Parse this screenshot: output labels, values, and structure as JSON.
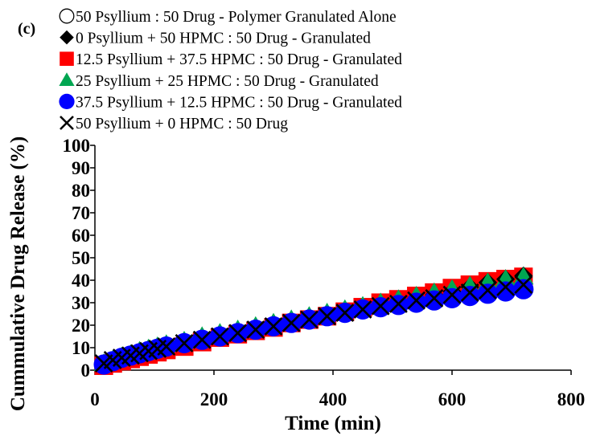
{
  "chart_data": {
    "type": "scatter",
    "panel_label": "(c)",
    "title": "",
    "xlabel": "Time (min)",
    "ylabel": "Cummulative Drug Release (%)",
    "xlim": [
      0,
      800
    ],
    "ylim": [
      0,
      100
    ],
    "x_ticks": [
      0,
      200,
      400,
      600,
      800
    ],
    "y_ticks": [
      0,
      10,
      20,
      30,
      40,
      50,
      60,
      70,
      80,
      90,
      100
    ],
    "grid": false,
    "legend_position": "top",
    "series": [
      {
        "name": "50 Psyllium : 50 Drug - Polymer Granulated Alone",
        "marker": "open-circle",
        "color": "#000000",
        "x": [],
        "y": []
      },
      {
        "name": "0 Psyllium + 50 HPMC : 50 Drug - Granulated",
        "marker": "diamond",
        "color": "#000000",
        "x": [
          15,
          30,
          45,
          60,
          75,
          90,
          105,
          120,
          150,
          180,
          210,
          240,
          270,
          300,
          330,
          360,
          390,
          420,
          450,
          480,
          510,
          540,
          570,
          600,
          630,
          660,
          690,
          720
        ],
        "y": [
          3,
          4.5,
          6,
          7,
          8,
          9,
          10,
          11,
          12.5,
          14,
          15.5,
          17,
          18.5,
          20,
          21.5,
          23,
          24.5,
          26,
          27.5,
          29,
          30.5,
          32,
          33.5,
          35,
          37,
          39,
          40.5,
          42
        ]
      },
      {
        "name": "12.5 Psyllium + 37.5 HPMC : 50 Drug - Granulated",
        "marker": "square",
        "color": "#ff0000",
        "x": [
          15,
          30,
          45,
          60,
          75,
          90,
          105,
          120,
          150,
          180,
          210,
          240,
          270,
          300,
          330,
          360,
          390,
          420,
          450,
          480,
          510,
          540,
          570,
          600,
          630,
          660,
          690,
          720
        ],
        "y": [
          2,
          3,
          4,
          5,
          6,
          7,
          8,
          9,
          10.5,
          12.5,
          14.5,
          16,
          17.5,
          19,
          21,
          22.5,
          24,
          26,
          28,
          30,
          31.5,
          33,
          34.5,
          36.5,
          38,
          39.5,
          40.5,
          41.5
        ]
      },
      {
        "name": "25 Psyllium + 25 HPMC : 50 Drug - Granulated",
        "marker": "triangle",
        "color": "#00a651",
        "x": [
          15,
          30,
          45,
          60,
          75,
          90,
          105,
          120,
          150,
          180,
          210,
          240,
          270,
          300,
          330,
          360,
          390,
          420,
          450,
          480,
          510,
          540,
          570,
          600,
          630,
          660,
          690,
          720
        ],
        "y": [
          3,
          4.5,
          6,
          7,
          8.5,
          9.5,
          10.5,
          11.5,
          13,
          15,
          16.5,
          18,
          19.5,
          21,
          22.5,
          24,
          25.5,
          27,
          28.5,
          30,
          31.5,
          33,
          34.5,
          36,
          37.5,
          39,
          40.5,
          41.5
        ]
      },
      {
        "name": "37.5 Psyllium + 12.5 HPMC : 50 Drug - Granulated",
        "marker": "circle",
        "color": "#0000ff",
        "x": [
          15,
          30,
          45,
          60,
          75,
          90,
          105,
          120,
          150,
          180,
          210,
          240,
          270,
          300,
          330,
          360,
          390,
          420,
          450,
          480,
          510,
          540,
          570,
          600,
          630,
          660,
          690,
          720
        ],
        "y": [
          2.5,
          4,
          5.5,
          6.5,
          7.5,
          8.5,
          9.5,
          10.5,
          12,
          13.5,
          15,
          16.5,
          18,
          19.5,
          21,
          22.5,
          24,
          25.5,
          27,
          28,
          29,
          30,
          31,
          32,
          33,
          34,
          35,
          36
        ]
      },
      {
        "name": "50 Psyllium + 0 HPMC : 50 Drug",
        "marker": "x",
        "color": "#000000",
        "x": [
          15,
          30,
          45,
          60,
          75,
          90,
          105,
          120,
          150,
          180,
          210,
          240,
          270,
          300,
          330,
          360,
          390,
          420,
          450,
          480,
          510,
          540,
          570,
          600,
          630,
          660,
          690,
          720
        ],
        "y": [
          3,
          4.5,
          5.5,
          6.5,
          7.5,
          8.5,
          9.5,
          10.5,
          12,
          13.5,
          15,
          16.5,
          18,
          19.5,
          21,
          22.5,
          24,
          25.5,
          27,
          28.5,
          29.5,
          31,
          32,
          33.5,
          34.5,
          35.5,
          37,
          38
        ]
      }
    ]
  }
}
